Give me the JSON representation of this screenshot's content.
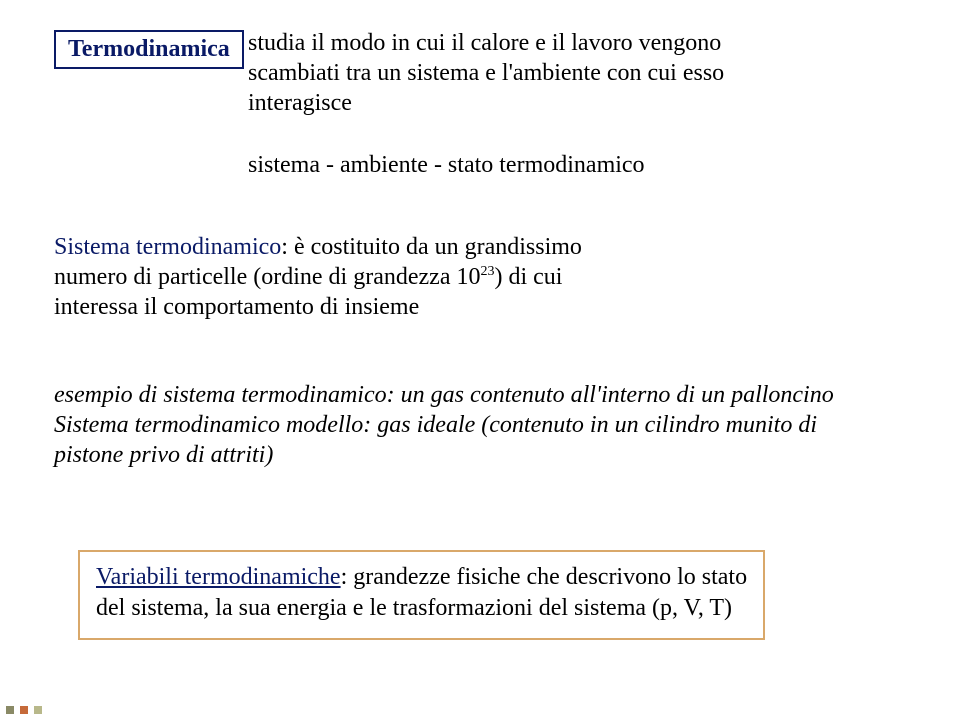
{
  "colors": {
    "title_text": "#0a1a66",
    "title_border": "#0a1a66",
    "body_text": "#000000",
    "highlight_text": "#0a1a66",
    "var_border": "#d9a86a",
    "var_label": "#0a1a66",
    "bg": "#ffffff"
  },
  "title": "Termodinamica",
  "intro_l1": "studia il modo in cui il calore e il lavoro vengono",
  "intro_l2": "scambiati tra un sistema e l'ambiente con cui esso",
  "intro_l3": "interagisce",
  "subtitle": "sistema - ambiente - stato termodinamico",
  "p1_highlight": "Sistema termodinamico",
  "p1_after1": ": è costituito da un grandissimo",
  "p1_l2a": "numero di particelle (ordine di grandezza 10",
  "p1_sup": "23",
  "p1_l2b": ") di cui",
  "p1_l3": "interessa il comportamento di insieme",
  "p2_l1": "esempio di sistema termodinamico: un gas contenuto all'interno di un palloncino",
  "p2_l2": "Sistema termodinamico modello: gas ideale (contenuto in un cilindro munito di",
  "p2_l3": "pistone privo di attriti)",
  "var_label": "Variabili termodinamiche",
  "var_after": ": grandezze fisiche che descrivono lo stato",
  "var_l2": "del sistema, la sua energia e le trasformazioni del sistema (p, V, T)"
}
